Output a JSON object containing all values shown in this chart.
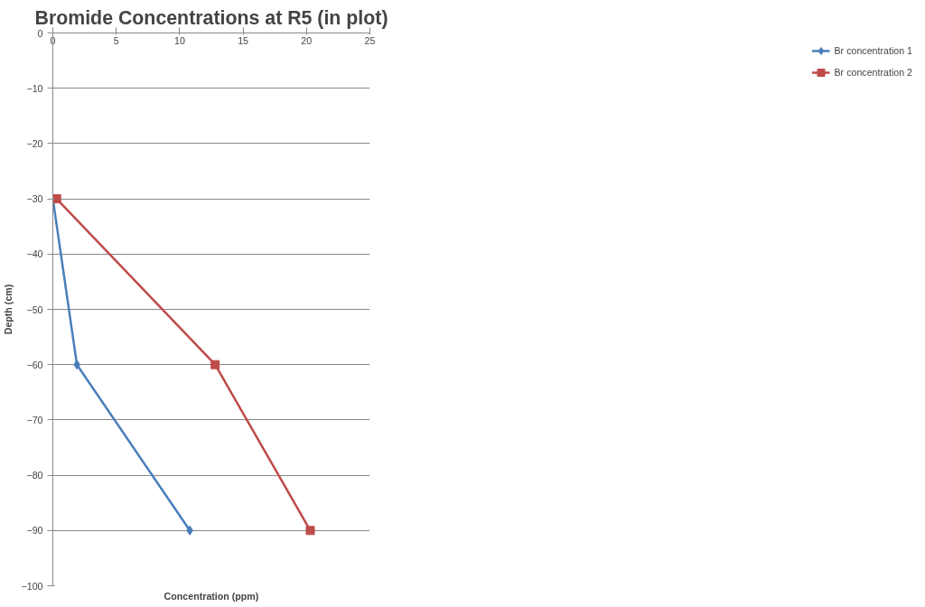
{
  "chart_data": {
    "type": "line",
    "title": "Bromide Concentrations at R5 (in plot)",
    "xlabel": "Concentration (ppm)",
    "ylabel": "Depth (cm)",
    "series": [
      {
        "name": "Br concentration 1",
        "color": "#4a7ebb",
        "marker": "diamond",
        "x": [
          0,
          1.9,
          10.8
        ],
        "values": [
          -30,
          -60,
          -90
        ]
      },
      {
        "name": "Br concentration 2",
        "color": "#be4b48",
        "marker": "square",
        "x": [
          0.3,
          12.8,
          20.3
        ],
        "values": [
          -30,
          -60,
          -90
        ]
      }
    ],
    "xlim": [
      0,
      25
    ],
    "xticks": [
      0,
      5,
      10,
      15,
      20,
      25
    ],
    "ylim": [
      -100,
      0
    ],
    "yticks": [
      -100,
      -90,
      -80,
      -70,
      -60,
      -50,
      -40,
      -30,
      -20,
      -10,
      0
    ],
    "grid": "y",
    "legend": "right"
  }
}
